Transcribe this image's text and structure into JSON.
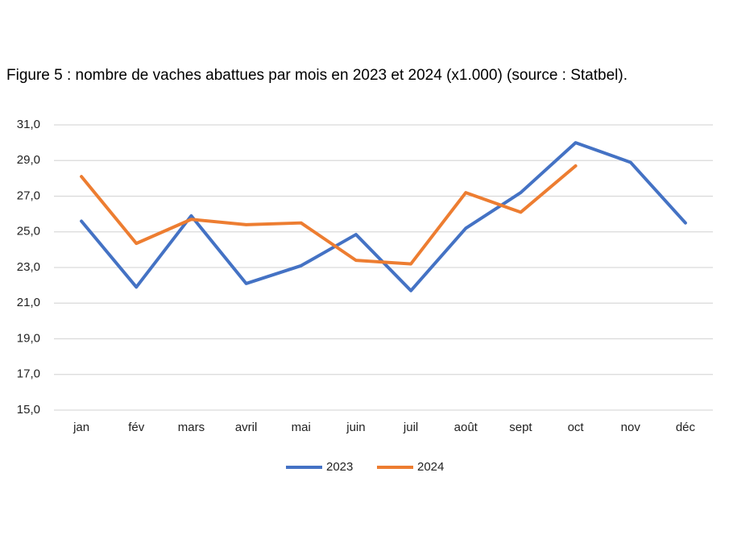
{
  "chart_data": {
    "type": "line",
    "title": "Figure 5 : nombre de vaches abattues par mois en 2023 et 2024 (x1.000) (source : Statbel).",
    "categories": [
      "jan",
      "fév",
      "mars",
      "avril",
      "mai",
      "juin",
      "juil",
      "août",
      "sept",
      "oct",
      "nov",
      "déc"
    ],
    "series": [
      {
        "name": "2023",
        "color": "#4472c4",
        "values": [
          25.6,
          21.9,
          25.9,
          22.1,
          23.1,
          24.85,
          21.7,
          25.2,
          27.2,
          30.0,
          28.9,
          25.5
        ]
      },
      {
        "name": "2024",
        "color": "#ed7d31",
        "values": [
          28.1,
          24.35,
          25.7,
          25.4,
          25.5,
          23.4,
          23.2,
          27.2,
          26.1,
          28.7,
          null,
          null
        ]
      }
    ],
    "ylim": [
      15,
      31
    ],
    "yticks": [
      {
        "value": 15,
        "label": "15,0"
      },
      {
        "value": 17,
        "label": "17,0"
      },
      {
        "value": 19,
        "label": "19,0"
      },
      {
        "value": 21,
        "label": "21,0"
      },
      {
        "value": 23,
        "label": "23,0"
      },
      {
        "value": 25,
        "label": "25,0"
      },
      {
        "value": 27,
        "label": "27,0"
      },
      {
        "value": 29,
        "label": "29,0"
      },
      {
        "value": 31,
        "label": "31,0"
      }
    ],
    "grid": true,
    "legend": "bottom"
  }
}
